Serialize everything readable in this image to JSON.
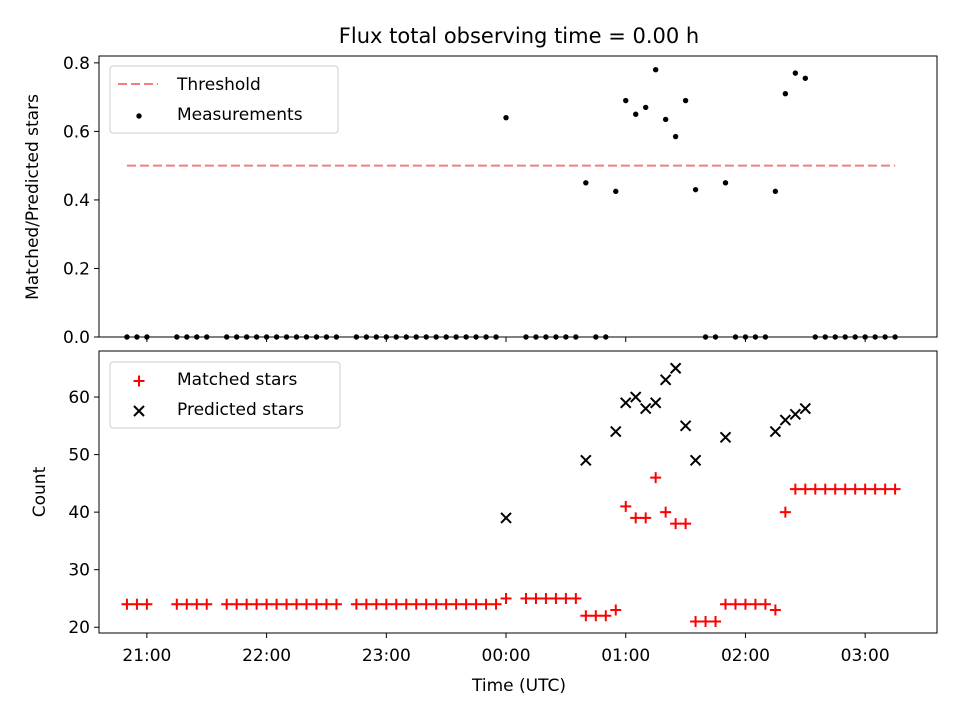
{
  "chart_data": [
    {
      "type": "scatter",
      "title": "Flux total observing time = 0.00 h",
      "xlabel": "",
      "ylabel": "Matched/Predicted stars",
      "xlim": [
        "20:36",
        "03:36"
      ],
      "ylim": [
        0,
        0.82
      ],
      "yticks": [
        "0.0",
        "0.2",
        "0.4",
        "0.6",
        "0.8"
      ],
      "legend_position": "top-left",
      "threshold": {
        "name": "Threshold",
        "value": 0.5,
        "x_range": [
          "20:50",
          "03:15"
        ],
        "color": "#f08080",
        "style": "dashed"
      },
      "series": [
        {
          "name": "Measurements",
          "color": "#000000",
          "marker": "dot",
          "points": [
            [
              "20:50",
              0.0
            ],
            [
              "20:55",
              0.0
            ],
            [
              "21:00",
              0.0
            ],
            [
              "21:15",
              0.0
            ],
            [
              "21:20",
              0.0
            ],
            [
              "21:25",
              0.0
            ],
            [
              "21:30",
              0.0
            ],
            [
              "21:40",
              0.0
            ],
            [
              "21:45",
              0.0
            ],
            [
              "21:50",
              0.0
            ],
            [
              "21:55",
              0.0
            ],
            [
              "22:00",
              0.0
            ],
            [
              "22:05",
              0.0
            ],
            [
              "22:10",
              0.0
            ],
            [
              "22:15",
              0.0
            ],
            [
              "22:20",
              0.0
            ],
            [
              "22:25",
              0.0
            ],
            [
              "22:30",
              0.0
            ],
            [
              "22:35",
              0.0
            ],
            [
              "22:45",
              0.0
            ],
            [
              "22:50",
              0.0
            ],
            [
              "22:55",
              0.0
            ],
            [
              "23:00",
              0.0
            ],
            [
              "23:05",
              0.0
            ],
            [
              "23:10",
              0.0
            ],
            [
              "23:15",
              0.0
            ],
            [
              "23:20",
              0.0
            ],
            [
              "23:25",
              0.0
            ],
            [
              "23:30",
              0.0
            ],
            [
              "23:35",
              0.0
            ],
            [
              "23:40",
              0.0
            ],
            [
              "23:45",
              0.0
            ],
            [
              "23:50",
              0.0
            ],
            [
              "23:55",
              0.0
            ],
            [
              "00:00",
              0.64
            ],
            [
              "00:10",
              0.0
            ],
            [
              "00:15",
              0.0
            ],
            [
              "00:20",
              0.0
            ],
            [
              "00:25",
              0.0
            ],
            [
              "00:30",
              0.0
            ],
            [
              "00:35",
              0.0
            ],
            [
              "00:40",
              0.45
            ],
            [
              "00:45",
              0.0
            ],
            [
              "00:50",
              0.0
            ],
            [
              "00:55",
              0.425
            ],
            [
              "01:00",
              0.69
            ],
            [
              "01:05",
              0.65
            ],
            [
              "01:10",
              0.67
            ],
            [
              "01:15",
              0.78
            ],
            [
              "01:20",
              0.635
            ],
            [
              "01:25",
              0.585
            ],
            [
              "01:30",
              0.69
            ],
            [
              "01:35",
              0.43
            ],
            [
              "01:40",
              0.0
            ],
            [
              "01:45",
              0.0
            ],
            [
              "01:50",
              0.45
            ],
            [
              "01:55",
              0.0
            ],
            [
              "02:00",
              0.0
            ],
            [
              "02:05",
              0.0
            ],
            [
              "02:10",
              0.0
            ],
            [
              "02:15",
              0.425
            ],
            [
              "02:20",
              0.71
            ],
            [
              "02:25",
              0.77
            ],
            [
              "02:30",
              0.755
            ],
            [
              "02:35",
              0.0
            ],
            [
              "02:40",
              0.0
            ],
            [
              "02:45",
              0.0
            ],
            [
              "02:50",
              0.0
            ],
            [
              "02:55",
              0.0
            ],
            [
              "03:00",
              0.0
            ],
            [
              "03:05",
              0.0
            ],
            [
              "03:10",
              0.0
            ],
            [
              "03:15",
              0.0
            ]
          ]
        }
      ]
    },
    {
      "type": "scatter",
      "title": "",
      "xlabel": "Time (UTC)",
      "ylabel": "Count",
      "xlim": [
        "20:36",
        "03:36"
      ],
      "ylim": [
        19,
        68
      ],
      "xticks": [
        "21:00",
        "22:00",
        "23:00",
        "00:00",
        "01:00",
        "02:00",
        "03:00"
      ],
      "yticks": [
        "20",
        "30",
        "40",
        "50",
        "60"
      ],
      "legend_position": "top-left",
      "series": [
        {
          "name": "Matched stars",
          "color": "#ff0000",
          "marker": "plus",
          "points": [
            [
              "20:50",
              24
            ],
            [
              "20:55",
              24
            ],
            [
              "21:00",
              24
            ],
            [
              "21:15",
              24
            ],
            [
              "21:20",
              24
            ],
            [
              "21:25",
              24
            ],
            [
              "21:30",
              24
            ],
            [
              "21:40",
              24
            ],
            [
              "21:45",
              24
            ],
            [
              "21:50",
              24
            ],
            [
              "21:55",
              24
            ],
            [
              "22:00",
              24
            ],
            [
              "22:05",
              24
            ],
            [
              "22:10",
              24
            ],
            [
              "22:15",
              24
            ],
            [
              "22:20",
              24
            ],
            [
              "22:25",
              24
            ],
            [
              "22:30",
              24
            ],
            [
              "22:35",
              24
            ],
            [
              "22:45",
              24
            ],
            [
              "22:50",
              24
            ],
            [
              "22:55",
              24
            ],
            [
              "23:00",
              24
            ],
            [
              "23:05",
              24
            ],
            [
              "23:10",
              24
            ],
            [
              "23:15",
              24
            ],
            [
              "23:20",
              24
            ],
            [
              "23:25",
              24
            ],
            [
              "23:30",
              24
            ],
            [
              "23:35",
              24
            ],
            [
              "23:40",
              24
            ],
            [
              "23:45",
              24
            ],
            [
              "23:50",
              24
            ],
            [
              "23:55",
              24
            ],
            [
              "00:00",
              25
            ],
            [
              "00:10",
              25
            ],
            [
              "00:15",
              25
            ],
            [
              "00:20",
              25
            ],
            [
              "00:25",
              25
            ],
            [
              "00:30",
              25
            ],
            [
              "00:35",
              25
            ],
            [
              "00:40",
              22
            ],
            [
              "00:45",
              22
            ],
            [
              "00:50",
              22
            ],
            [
              "00:55",
              23
            ],
            [
              "01:00",
              41
            ],
            [
              "01:05",
              39
            ],
            [
              "01:10",
              39
            ],
            [
              "01:15",
              46
            ],
            [
              "01:20",
              40
            ],
            [
              "01:25",
              38
            ],
            [
              "01:30",
              38
            ],
            [
              "01:35",
              21
            ],
            [
              "01:40",
              21
            ],
            [
              "01:45",
              21
            ],
            [
              "01:50",
              24
            ],
            [
              "01:55",
              24
            ],
            [
              "02:00",
              24
            ],
            [
              "02:05",
              24
            ],
            [
              "02:10",
              24
            ],
            [
              "02:15",
              23
            ],
            [
              "02:20",
              40
            ],
            [
              "02:25",
              44
            ],
            [
              "02:30",
              44
            ],
            [
              "02:35",
              44
            ],
            [
              "02:40",
              44
            ],
            [
              "02:45",
              44
            ],
            [
              "02:50",
              44
            ],
            [
              "02:55",
              44
            ],
            [
              "03:00",
              44
            ],
            [
              "03:05",
              44
            ],
            [
              "03:10",
              44
            ],
            [
              "03:15",
              44
            ]
          ]
        },
        {
          "name": "Predicted stars",
          "color": "#000000",
          "marker": "x",
          "points": [
            [
              "00:00",
              39
            ],
            [
              "00:40",
              49
            ],
            [
              "00:55",
              54
            ],
            [
              "01:00",
              59
            ],
            [
              "01:05",
              60
            ],
            [
              "01:10",
              58
            ],
            [
              "01:15",
              59
            ],
            [
              "01:20",
              63
            ],
            [
              "01:25",
              65
            ],
            [
              "01:30",
              55
            ],
            [
              "01:35",
              49
            ],
            [
              "01:50",
              53
            ],
            [
              "02:15",
              54
            ],
            [
              "02:20",
              56
            ],
            [
              "02:25",
              57
            ],
            [
              "02:30",
              58
            ]
          ]
        }
      ]
    }
  ]
}
